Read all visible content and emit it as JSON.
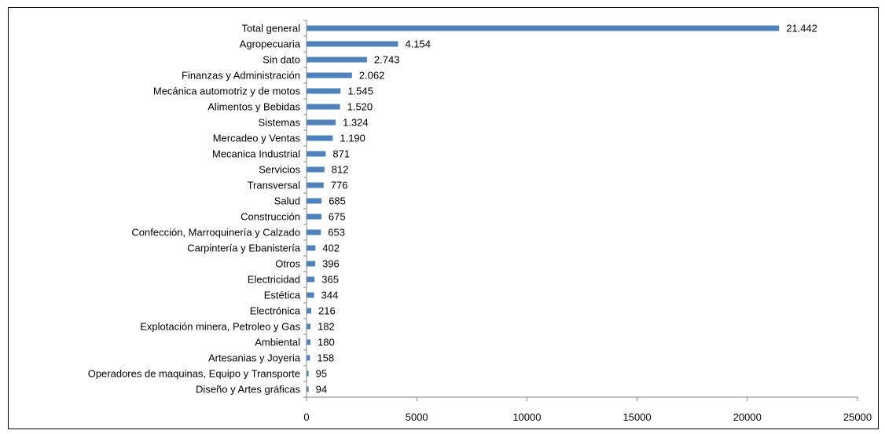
{
  "chart_data": {
    "type": "bar",
    "orientation": "horizontal",
    "title": "",
    "xlabel": "",
    "ylabel": "",
    "categories": [
      "Total general",
      "Agropecuaria",
      "Sin dato",
      "Finanzas y Administración",
      "Mecánica automotriz y de motos",
      "Alimentos y Bebidas",
      "Sistemas",
      "Mercadeo y Ventas",
      "Mecanica Industrial",
      "Servicios",
      "Transversal",
      "Salud",
      "Construcción",
      "Confección, Marroquinería y Calzado",
      "Carpintería y Ebanistería",
      "Otros",
      "Electricidad",
      "Estética",
      "Electrónica",
      "Explotación minera, Petroleo y Gas",
      "Ambiental",
      "Artesanias y Joyeria",
      "Operadores de maquinas, Equipo y Transporte",
      "Diseño y Artes gráficas"
    ],
    "values": [
      21442,
      4154,
      2743,
      2062,
      1545,
      1520,
      1324,
      1190,
      871,
      812,
      776,
      685,
      675,
      653,
      402,
      396,
      365,
      344,
      216,
      182,
      180,
      158,
      95,
      94
    ],
    "value_labels": [
      "21.442",
      "4.154",
      "2.743",
      "2.062",
      "1.545",
      "1.520",
      "1.324",
      "1.190",
      "871",
      "812",
      "776",
      "685",
      "675",
      "653",
      "402",
      "396",
      "365",
      "344",
      "216",
      "182",
      "180",
      "158",
      "95",
      "94"
    ],
    "xlim": [
      0,
      25000
    ],
    "x_ticks": [
      0,
      5000,
      10000,
      15000,
      20000,
      25000
    ],
    "x_tick_labels": [
      "0",
      "5000",
      "10000",
      "15000",
      "20000",
      "25000"
    ],
    "grid": false,
    "legend": "none",
    "bar_color": "#4F81BD",
    "axis_color": "#868686"
  }
}
